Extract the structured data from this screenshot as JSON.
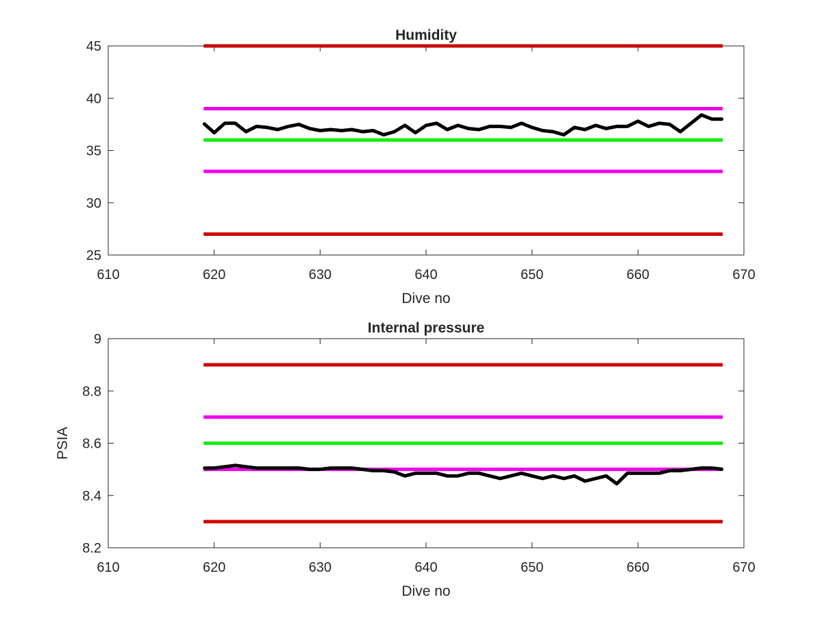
{
  "chart_data": [
    {
      "type": "line",
      "title": "Humidity",
      "xlabel": "Dive no",
      "ylabel": "",
      "xlim": [
        610,
        670
      ],
      "ylim": [
        25,
        45
      ],
      "xticks": [
        610,
        620,
        630,
        640,
        650,
        660,
        670
      ],
      "yticks": [
        25,
        30,
        35,
        40,
        45
      ],
      "grid": false,
      "series": [
        {
          "kind": "hline",
          "color": "#cc0000",
          "x": [
            619,
            668
          ],
          "y": 45
        },
        {
          "kind": "hline",
          "color": "#ee00ee",
          "x": [
            619,
            668
          ],
          "y": 39
        },
        {
          "kind": "hline",
          "color": "#11ee11",
          "x": [
            619,
            668
          ],
          "y": 36
        },
        {
          "kind": "hline",
          "color": "#ee00ee",
          "x": [
            619,
            668
          ],
          "y": 33
        },
        {
          "kind": "hline",
          "color": "#cc0000",
          "x": [
            619,
            668
          ],
          "y": 27
        },
        {
          "kind": "line",
          "color": "#000000",
          "x": [
            619,
            620,
            621,
            622,
            623,
            624,
            625,
            626,
            627,
            628,
            629,
            630,
            631,
            632,
            633,
            634,
            635,
            636,
            637,
            638,
            639,
            640,
            641,
            642,
            643,
            644,
            645,
            646,
            647,
            648,
            649,
            650,
            651,
            652,
            653,
            654,
            655,
            656,
            657,
            658,
            659,
            660,
            661,
            662,
            663,
            664,
            665,
            666,
            667,
            668
          ],
          "y": [
            37.6,
            36.7,
            37.6,
            37.6,
            36.8,
            37.3,
            37.2,
            37.0,
            37.3,
            37.5,
            37.1,
            36.9,
            37.0,
            36.9,
            37.0,
            36.8,
            36.9,
            36.5,
            36.8,
            37.4,
            36.7,
            37.4,
            37.6,
            37.0,
            37.4,
            37.1,
            37.0,
            37.3,
            37.3,
            37.2,
            37.6,
            37.2,
            36.9,
            36.8,
            36.5,
            37.2,
            37.0,
            37.4,
            37.1,
            37.3,
            37.3,
            37.8,
            37.3,
            37.6,
            37.5,
            36.8,
            37.6,
            38.4,
            38.0,
            38.0
          ]
        }
      ]
    },
    {
      "type": "line",
      "title": "Internal pressure",
      "xlabel": "Dive no",
      "ylabel": "PSIA",
      "xlim": [
        610,
        670
      ],
      "ylim": [
        8.2,
        9.0
      ],
      "xticks": [
        610,
        620,
        630,
        640,
        650,
        660,
        670
      ],
      "yticks": [
        8.2,
        8.4,
        8.6,
        8.8,
        9.0
      ],
      "ytick_labels": [
        "8.2",
        "8.4",
        "8.6",
        "8.8",
        "9"
      ],
      "grid": false,
      "series": [
        {
          "kind": "hline",
          "color": "#cc0000",
          "x": [
            619,
            668
          ],
          "y": 8.9
        },
        {
          "kind": "hline",
          "color": "#ee00ee",
          "x": [
            619,
            668
          ],
          "y": 8.7
        },
        {
          "kind": "hline",
          "color": "#11ee11",
          "x": [
            619,
            668
          ],
          "y": 8.6
        },
        {
          "kind": "hline",
          "color": "#ee00ee",
          "x": [
            619,
            668
          ],
          "y": 8.5
        },
        {
          "kind": "hline",
          "color": "#cc0000",
          "x": [
            619,
            668
          ],
          "y": 8.3
        },
        {
          "kind": "line",
          "color": "#000000",
          "x": [
            619,
            620,
            621,
            622,
            623,
            624,
            625,
            626,
            627,
            628,
            629,
            630,
            631,
            632,
            633,
            634,
            635,
            636,
            637,
            638,
            639,
            640,
            641,
            642,
            643,
            644,
            645,
            646,
            647,
            648,
            649,
            650,
            651,
            652,
            653,
            654,
            655,
            656,
            657,
            658,
            659,
            660,
            661,
            662,
            663,
            664,
            665,
            666,
            667,
            668
          ],
          "y": [
            8.505,
            8.505,
            8.51,
            8.515,
            8.51,
            8.505,
            8.505,
            8.505,
            8.505,
            8.505,
            8.5,
            8.5,
            8.505,
            8.505,
            8.505,
            8.5,
            8.495,
            8.495,
            8.49,
            8.475,
            8.485,
            8.485,
            8.485,
            8.475,
            8.475,
            8.485,
            8.485,
            8.475,
            8.465,
            8.475,
            8.485,
            8.475,
            8.465,
            8.475,
            8.465,
            8.475,
            8.455,
            8.465,
            8.475,
            8.445,
            8.485,
            8.485,
            8.485,
            8.485,
            8.495,
            8.495,
            8.5,
            8.505,
            8.505,
            8.5
          ]
        }
      ]
    }
  ]
}
